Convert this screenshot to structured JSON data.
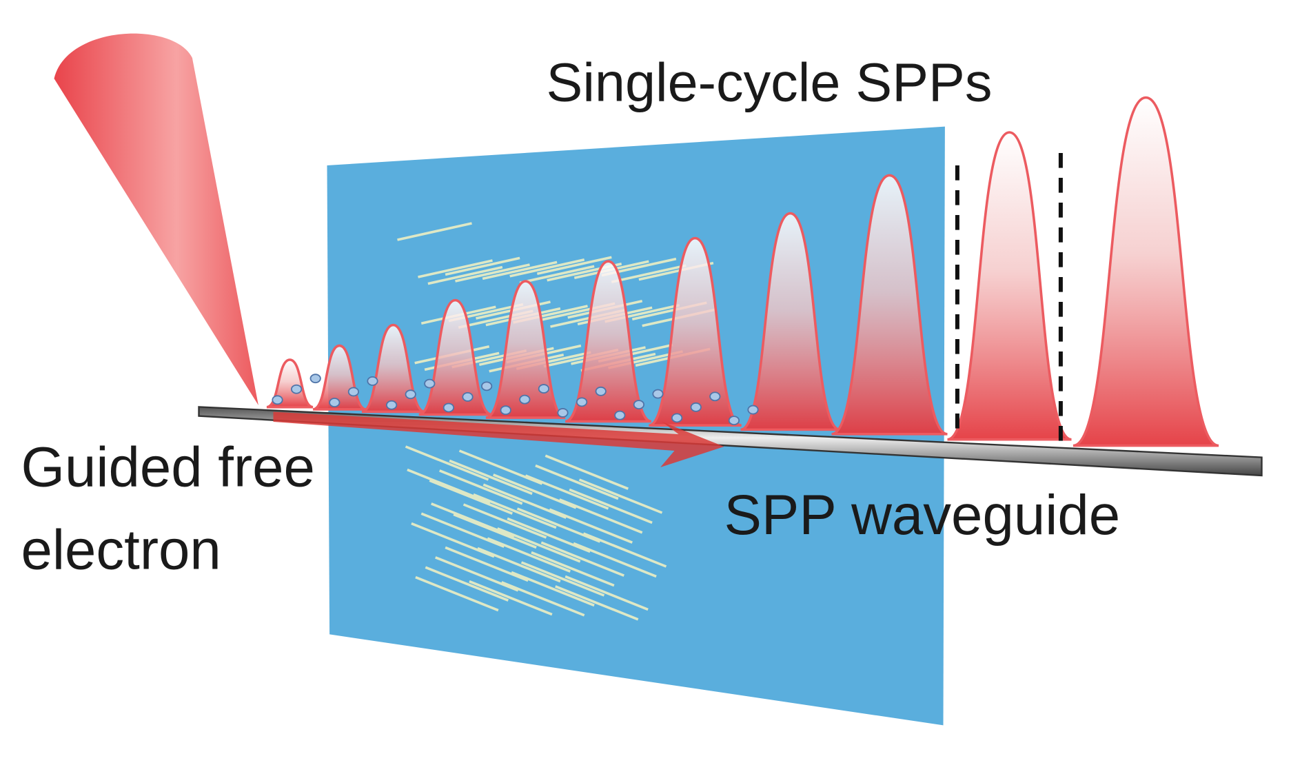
{
  "labels": {
    "pulses": "Single-cycle SPPs",
    "electron": [
      "Guided free",
      "electron"
    ],
    "waveguide": "SPP waveguide"
  }
}
